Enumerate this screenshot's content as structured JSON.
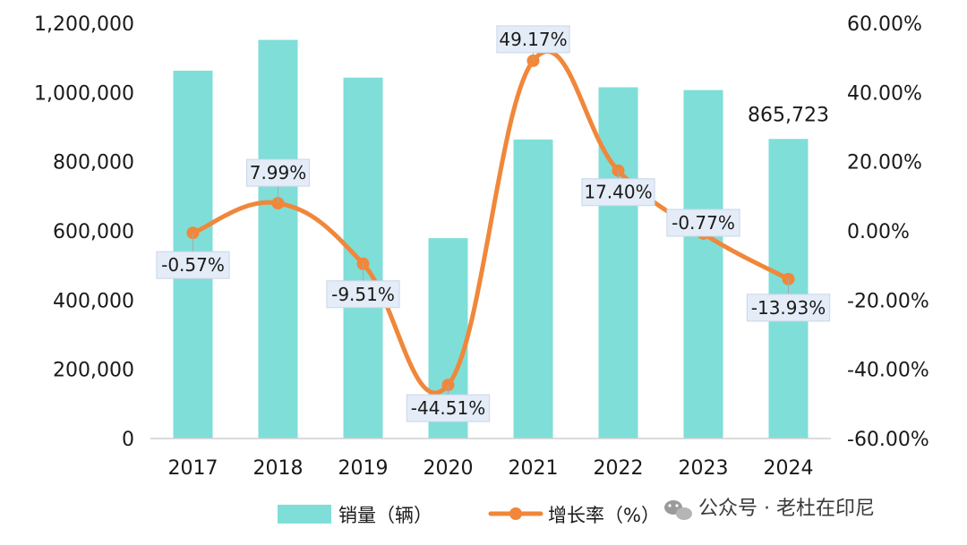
{
  "chart_data": {
    "type": "bar",
    "categories": [
      "2017",
      "2018",
      "2019",
      "2020",
      "2021",
      "2022",
      "2023",
      "2024"
    ],
    "series": [
      {
        "name": "销量（辆）",
        "type": "bar",
        "axis": "left",
        "color": "#7fded8",
        "values": [
          1063000,
          1152000,
          1043000,
          579000,
          864000,
          1015000,
          1007000,
          865723
        ]
      },
      {
        "name": "增长率（%）",
        "type": "line",
        "axis": "right",
        "color": "#f0873a",
        "values": [
          -0.57,
          7.99,
          -9.51,
          -44.51,
          49.17,
          17.4,
          -0.77,
          -13.93
        ],
        "labels": [
          "-0.57%",
          "7.99%",
          "-9.51%",
          "-44.51%",
          "49.17%",
          "17.40%",
          "-0.77%",
          "-13.93%"
        ]
      }
    ],
    "bar_value_labels": {
      "2024": "865,723"
    },
    "y_left": {
      "min": 0,
      "max": 1200000,
      "ticks": [
        "0",
        "200,000",
        "400,000",
        "600,000",
        "800,000",
        "1,000,000",
        "1,200,000"
      ]
    },
    "y_right": {
      "min": -60,
      "max": 60,
      "ticks": [
        "-60.00%",
        "-40.00%",
        "-20.00%",
        "0.00%",
        "20.00%",
        "40.00%",
        "60.00%"
      ]
    },
    "legend": [
      "销量（辆）",
      "增长率（%）"
    ],
    "legend_position": "bottom",
    "grid": false
  },
  "watermark": {
    "icon": "wechat-icon",
    "text": "公众号 · 老杜在印尼"
  }
}
